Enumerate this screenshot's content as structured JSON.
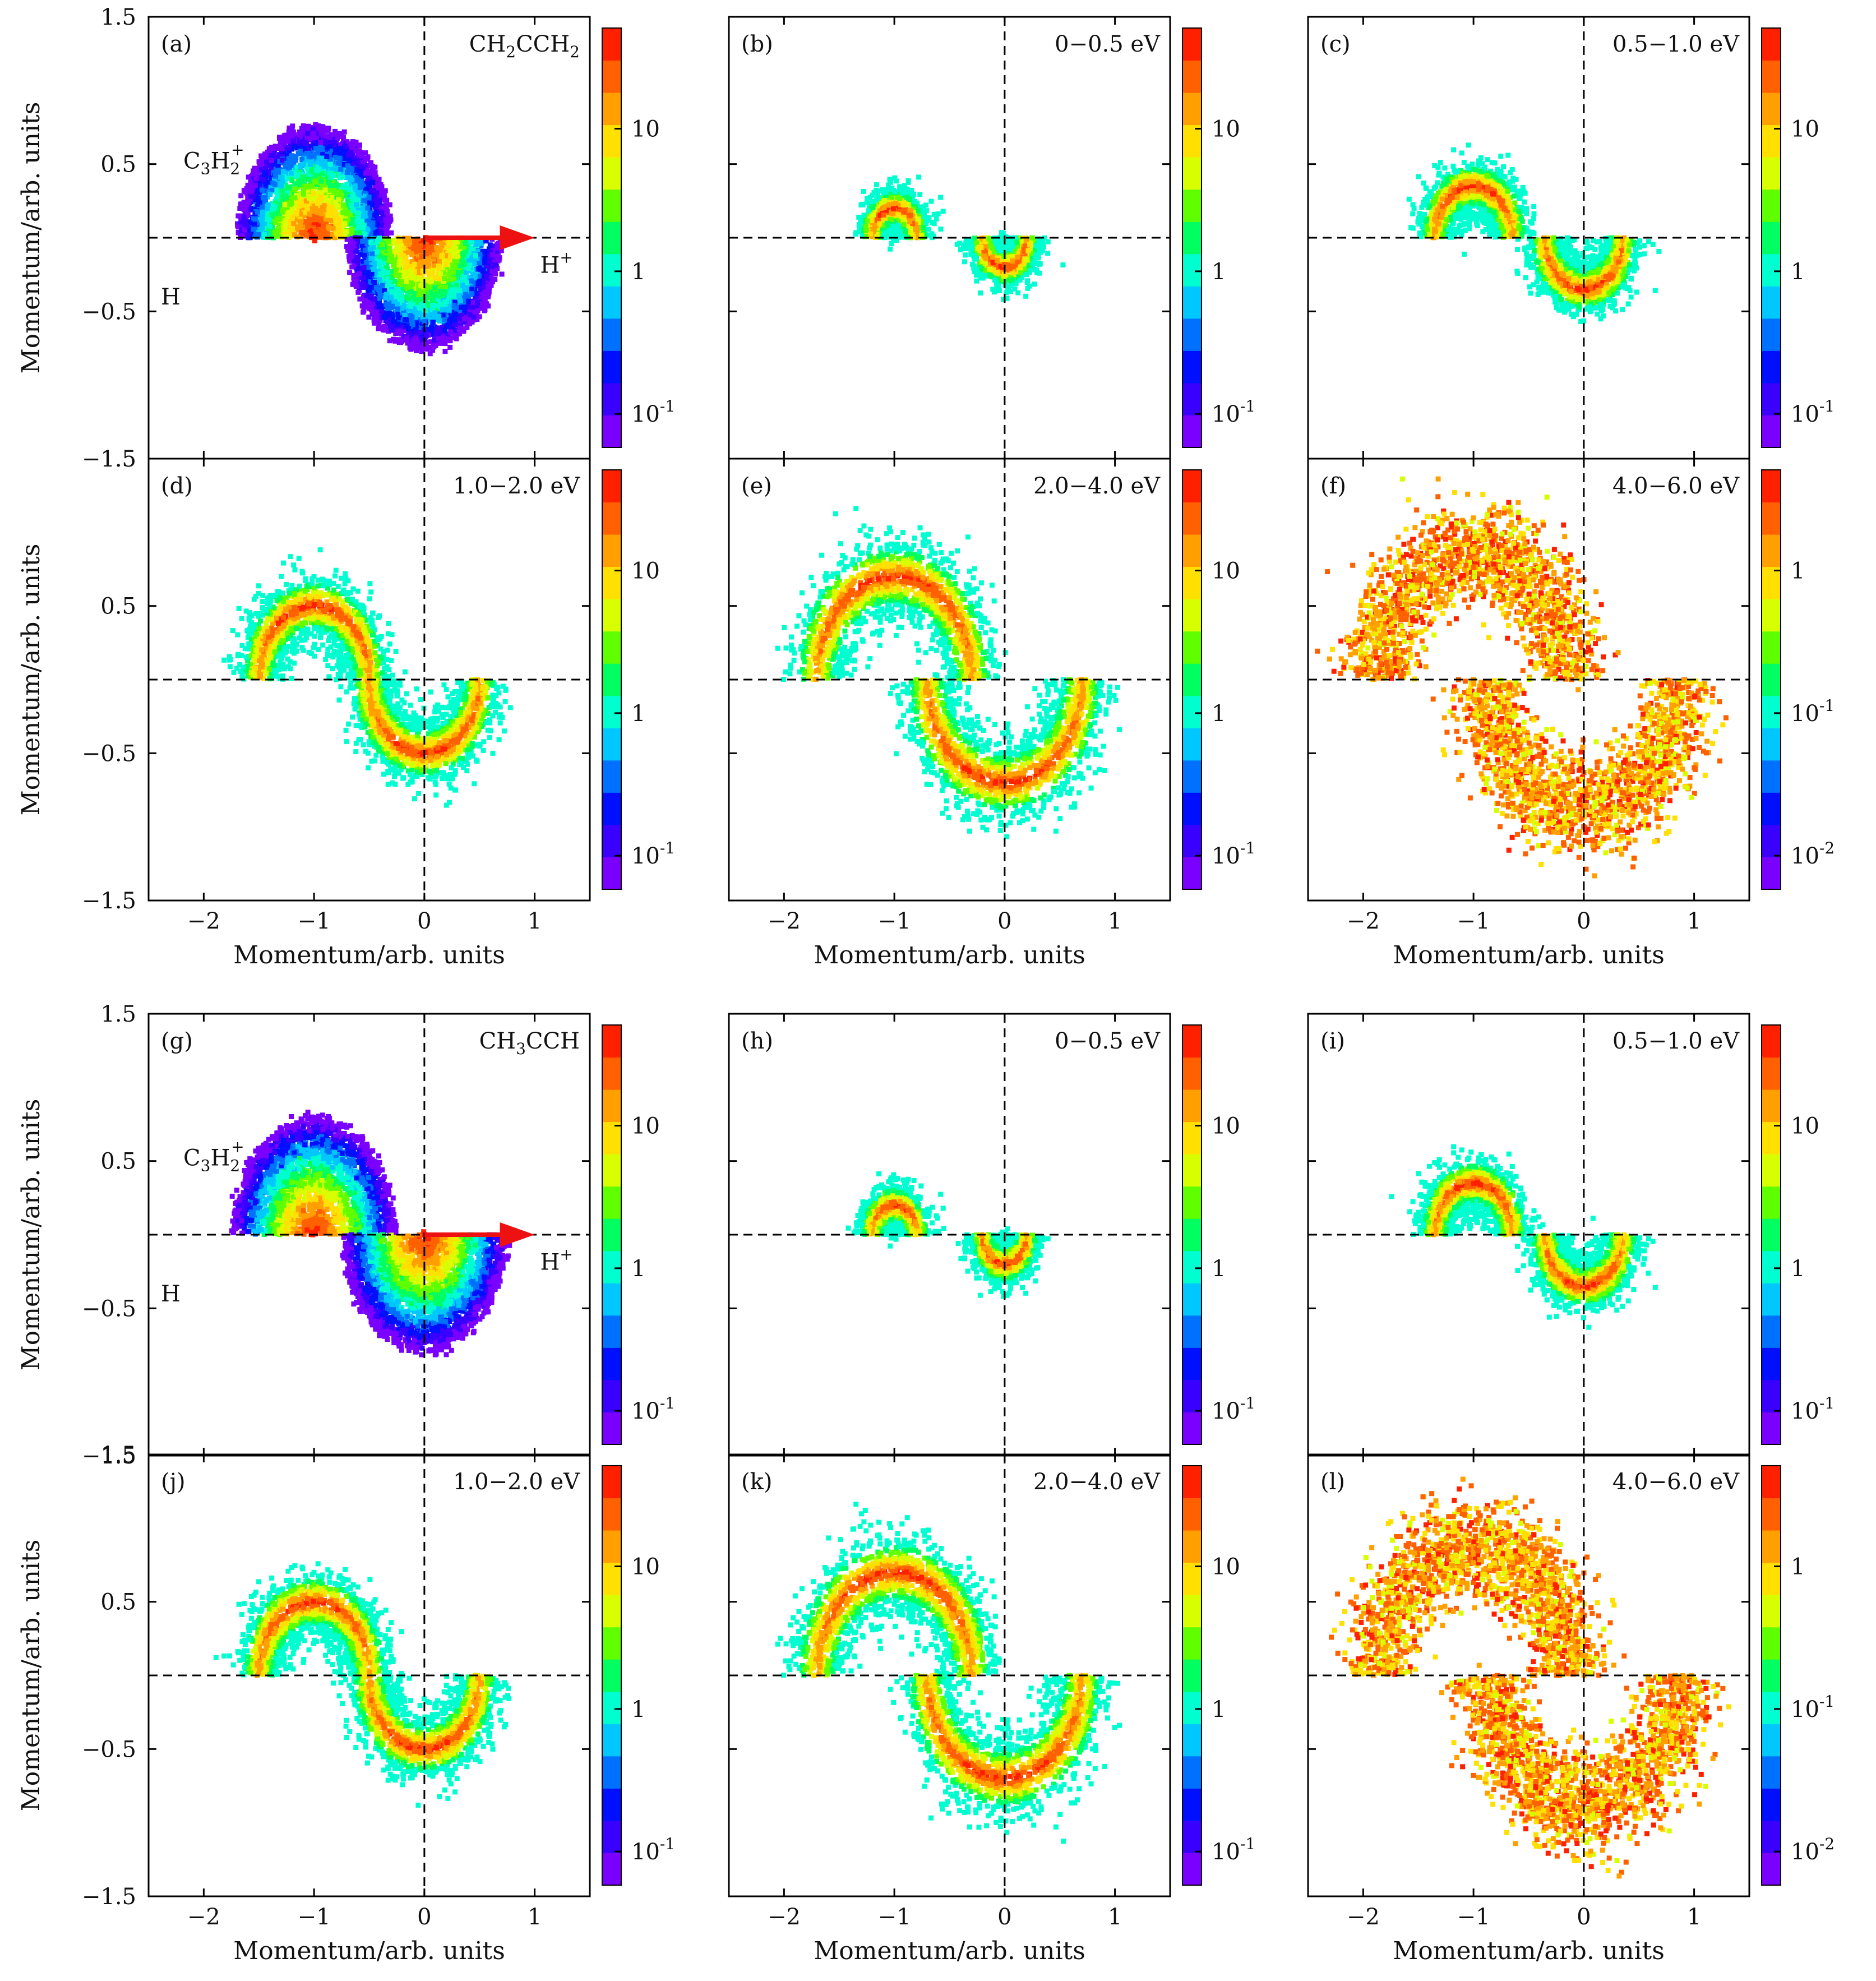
{
  "chart_data": [
    {
      "type": "heatmap",
      "panel": "(a)",
      "label": "CH2CCH2",
      "label_sub": "CH<tspan baseline-shift='sub' font-size='28'>2</tspan>CCH<tspan baseline-shift='sub' font-size='28'>2</tspan>",
      "molecule": "CH2CCH2",
      "energy_range": "",
      "xlim": [
        -2.5,
        1.5
      ],
      "ylim": [
        -1.5,
        1.5
      ],
      "xticks": [
        -2,
        -1,
        0,
        1
      ],
      "yticks": [
        -1.5,
        -0.5,
        0.5,
        1.5
      ],
      "xlabel": "",
      "ylabel": "Momentum/arb. units",
      "shape": "disk",
      "radius": 0.66,
      "peak_offset": 0.0,
      "colorbar": {
        "scale": "log",
        "ticks": [
          "10",
          "1",
          "10^-1"
        ]
      },
      "annotations": {
        "fragment": "C3H2+",
        "neutral": "H",
        "proton": "H+"
      }
    },
    {
      "type": "heatmap",
      "panel": "(b)",
      "label": "0−0.5 eV",
      "energy_range": "0−0.5 eV",
      "xlim": [
        -2.5,
        1.5
      ],
      "ylim": [
        -1.5,
        1.5
      ],
      "xticks": [
        -2,
        -1,
        0,
        1
      ],
      "yticks": [
        -1.5,
        -0.5,
        0.5,
        1.5
      ],
      "xlabel": "",
      "ylabel": "",
      "shape": "ring",
      "radius": 0.2,
      "colorbar": {
        "scale": "log",
        "ticks": [
          "10",
          "1",
          "10^-1"
        ]
      }
    },
    {
      "type": "heatmap",
      "panel": "(c)",
      "label": "0.5−1.0 eV",
      "energy_range": "0.5−1.0 eV",
      "xlim": [
        -2.5,
        1.5
      ],
      "ylim": [
        -1.5,
        1.5
      ],
      "xticks": [
        -2,
        -1,
        0,
        1
      ],
      "yticks": [
        -1.5,
        -0.5,
        0.5,
        1.5
      ],
      "xlabel": "",
      "ylabel": "",
      "shape": "ring",
      "radius": 0.35,
      "colorbar": {
        "scale": "log",
        "ticks": [
          "10",
          "1",
          "10^-1"
        ]
      }
    },
    {
      "type": "heatmap",
      "panel": "(d)",
      "label": "1.0−2.0 eV",
      "energy_range": "1.0−2.0 eV",
      "xlim": [
        -2.5,
        1.5
      ],
      "ylim": [
        -1.5,
        1.5
      ],
      "xticks": [
        -2,
        -1,
        0,
        1
      ],
      "yticks": [
        -1.5,
        -0.5,
        0.5,
        1.5
      ],
      "xlabel": "Momentum/arb. units",
      "ylabel": "Momentum/arb. units",
      "shape": "ring",
      "radius": 0.5,
      "colorbar": {
        "scale": "log",
        "ticks": [
          "10",
          "1",
          "10^-1"
        ]
      }
    },
    {
      "type": "heatmap",
      "panel": "(e)",
      "label": "2.0−4.0 eV",
      "energy_range": "2.0−4.0 eV",
      "xlim": [
        -2.5,
        1.5
      ],
      "ylim": [
        -1.5,
        1.5
      ],
      "xticks": [
        -2,
        -1,
        0,
        1
      ],
      "yticks": [
        -1.5,
        -0.5,
        0.5,
        1.5
      ],
      "xlabel": "Momentum/arb. units",
      "ylabel": "",
      "shape": "ring",
      "radius": 0.7,
      "colorbar": {
        "scale": "log",
        "ticks": [
          "10",
          "1",
          "10^-1"
        ]
      }
    },
    {
      "type": "heatmap",
      "panel": "(f)",
      "label": "4.0−6.0 eV",
      "energy_range": "4.0−6.0 eV",
      "xlim": [
        -2.5,
        1.5
      ],
      "ylim": [
        -1.5,
        1.5
      ],
      "xticks": [
        -2,
        -1,
        0,
        1
      ],
      "yticks": [
        -1.5,
        -0.5,
        0.5,
        1.5
      ],
      "xlabel": "Momentum/arb. units",
      "ylabel": "",
      "shape": "ring",
      "radius": 0.88,
      "colorbar": {
        "scale": "log",
        "ticks": [
          "1",
          "10^-1",
          "10^-2"
        ]
      }
    },
    {
      "type": "heatmap",
      "panel": "(g)",
      "label": "CH3CCH",
      "label_sub": "CH<tspan baseline-shift='sub' font-size='28'>3</tspan>CCH",
      "molecule": "CH3CCH",
      "energy_range": "",
      "xlim": [
        -2.5,
        1.5
      ],
      "ylim": [
        -1.5,
        1.5
      ],
      "xticks": [
        -2,
        -1,
        0,
        1
      ],
      "yticks": [
        -1.5,
        -0.5,
        0.5,
        1.5
      ],
      "xlabel": "",
      "ylabel": "Momentum/arb. units",
      "shape": "disk",
      "radius": 0.7,
      "colorbar": {
        "scale": "log",
        "ticks": [
          "10",
          "1",
          "10^-1"
        ]
      },
      "annotations": {
        "fragment": "C3H2+",
        "neutral": "H",
        "proton": "H+"
      }
    },
    {
      "type": "heatmap",
      "panel": "(h)",
      "label": "0−0.5 eV",
      "energy_range": "0−0.5 eV",
      "xlim": [
        -2.5,
        1.5
      ],
      "ylim": [
        -1.5,
        1.5
      ],
      "xticks": [
        -2,
        -1,
        0,
        1
      ],
      "yticks": [
        -1.5,
        -0.5,
        0.5,
        1.5
      ],
      "xlabel": "",
      "ylabel": "",
      "shape": "ring",
      "radius": 0.2,
      "colorbar": {
        "scale": "log",
        "ticks": [
          "10",
          "1",
          "10^-1"
        ]
      }
    },
    {
      "type": "heatmap",
      "panel": "(i)",
      "label": "0.5−1.0 eV",
      "energy_range": "0.5−1.0 eV",
      "xlim": [
        -2.5,
        1.5
      ],
      "ylim": [
        -1.5,
        1.5
      ],
      "xticks": [
        -2,
        -1,
        0,
        1
      ],
      "yticks": [
        -1.5,
        -0.5,
        0.5,
        1.5
      ],
      "xlabel": "",
      "ylabel": "",
      "shape": "ring",
      "radius": 0.35,
      "colorbar": {
        "scale": "log",
        "ticks": [
          "10",
          "1",
          "10^-1"
        ]
      }
    },
    {
      "type": "heatmap",
      "panel": "(j)",
      "label": "1.0−2.0 eV",
      "energy_range": "1.0−2.0 eV",
      "xlim": [
        -2.5,
        1.5
      ],
      "ylim": [
        -1.5,
        1.5
      ],
      "xticks": [
        -2,
        -1,
        0,
        1
      ],
      "yticks": [
        -1.5,
        -0.5,
        0.5,
        1.5
      ],
      "xlabel": "Momentum/arb. units",
      "ylabel": "Momentum/arb. units",
      "shape": "ring",
      "radius": 0.5,
      "colorbar": {
        "scale": "log",
        "ticks": [
          "10",
          "1",
          "10^-1"
        ]
      }
    },
    {
      "type": "heatmap",
      "panel": "(k)",
      "label": "2.0−4.0 eV",
      "energy_range": "2.0−4.0 eV",
      "xlim": [
        -2.5,
        1.5
      ],
      "ylim": [
        -1.5,
        1.5
      ],
      "xticks": [
        -2,
        -1,
        0,
        1
      ],
      "yticks": [
        -1.5,
        -0.5,
        0.5,
        1.5
      ],
      "xlabel": "Momentum/arb. units",
      "ylabel": "",
      "shape": "ring",
      "radius": 0.7,
      "colorbar": {
        "scale": "log",
        "ticks": [
          "10",
          "1",
          "10^-1"
        ]
      }
    },
    {
      "type": "heatmap",
      "panel": "(l)",
      "label": "4.0−6.0 eV",
      "energy_range": "4.0−6.0 eV",
      "xlim": [
        -2.5,
        1.5
      ],
      "ylim": [
        -1.5,
        1.5
      ],
      "xticks": [
        -2,
        -1,
        0,
        1
      ],
      "yticks": [
        -1.5,
        -0.5,
        0.5,
        1.5
      ],
      "xlabel": "Momentum/arb. units",
      "ylabel": "",
      "shape": "ring",
      "radius": 0.88,
      "colorbar": {
        "scale": "log",
        "ticks": [
          "1",
          "10^-1",
          "10^-2"
        ]
      }
    }
  ],
  "colors": {
    "scale": [
      "#7a00ff",
      "#3a00ff",
      "#0010ff",
      "#0070ff",
      "#00c8ff",
      "#00ffd0",
      "#00ff60",
      "#60ff00",
      "#d8ff00",
      "#ffe000",
      "#ffa000",
      "#ff6000",
      "#ff2000"
    ],
    "arrow": "#ee1111"
  }
}
